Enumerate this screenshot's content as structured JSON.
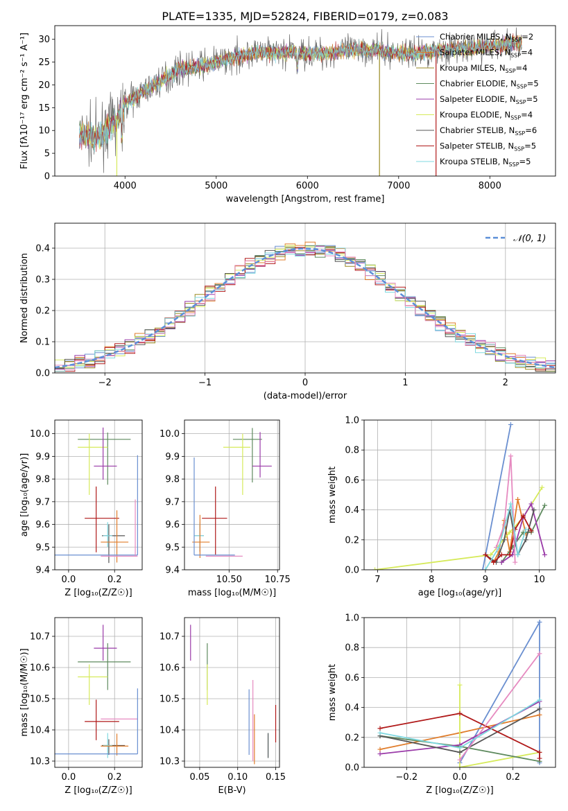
{
  "figure_title": "PLATE=1335, MJD=52824, FIBERID=0179, z=0.083",
  "colors": {
    "Chabrier MILES": "#6a8fd0",
    "Salpeter MILES": "#e07c2a",
    "Kroupa MILES": "#9a8a20",
    "Chabrier ELODIE": "#5e8a5e",
    "Salpeter ELODIE": "#9a3aa8",
    "Kroupa ELODIE": "#d6ea5a",
    "Chabrier STELIB": "#555555",
    "Salpeter STELIB": "#b01818",
    "Kroupa STELIB": "#7fd8e0",
    "pink": "#e68ac0",
    "normal": "#5b8fd8"
  },
  "chart_data": [
    {
      "id": "spectrum",
      "type": "line",
      "title": "PLATE=1335, MJD=52824, FIBERID=0179, z=0.083",
      "xlabel": "wavelength [Angstrom, rest frame]",
      "ylabel": "Flux [fλ10⁻¹⁷ erg cm⁻² s⁻¹ A⁻¹]",
      "xlim": [
        3230,
        8720
      ],
      "ylim": [
        0,
        33
      ],
      "xticks": [
        4000,
        5000,
        6000,
        7000,
        8000
      ],
      "yticks": [
        0,
        5,
        10,
        15,
        20,
        25,
        30
      ],
      "grid": false,
      "legend_position": "top-right",
      "continuum": {
        "x": [
          3500,
          3700,
          3900,
          4000,
          4200,
          4400,
          4600,
          4800,
          5000,
          5200,
          5400,
          5600,
          5800,
          6000,
          6200,
          6400,
          6600,
          6800,
          7000,
          7200,
          7400,
          7600,
          7800,
          8000,
          8200,
          8350
        ],
        "y": [
          9,
          8.5,
          12,
          16,
          18.5,
          21,
          23.5,
          24,
          25,
          26,
          27,
          27,
          27.2,
          27,
          27,
          27.5,
          27.8,
          27.5,
          27,
          27,
          27.5,
          28,
          28,
          28.5,
          29,
          29.5
        ]
      },
      "series": [
        {
          "name": "Chabrier MILES",
          "label_text": "Chabrier MILES, N",
          "sub": "SSP",
          "suffix": "=2"
        },
        {
          "name": "Salpeter MILES",
          "label_text": "Salpeter MILES, N",
          "sub": "SSP",
          "suffix": "=4"
        },
        {
          "name": "Kroupa MILES",
          "label_text": "Kroupa MILES, N",
          "sub": "SSP",
          "suffix": "=4"
        },
        {
          "name": "Chabrier ELODIE",
          "label_text": "Chabrier ELODIE, N",
          "sub": "SSP",
          "suffix": "=5"
        },
        {
          "name": "Salpeter ELODIE",
          "label_text": "Salpeter ELODIE, N",
          "sub": "SSP",
          "suffix": "=5"
        },
        {
          "name": "Kroupa ELODIE",
          "label_text": "Kroupa ELODIE, N",
          "sub": "SSP",
          "suffix": "=4"
        },
        {
          "name": "Chabrier STELIB",
          "label_text": "Chabrier STELIB, N",
          "sub": "SSP",
          "suffix": "=6"
        },
        {
          "name": "Salpeter STELIB",
          "label_text": "Salpeter STELIB, N",
          "sub": "SSP",
          "suffix": "=5"
        },
        {
          "name": "Kroupa STELIB",
          "label_text": "Kroupa STELIB, N",
          "sub": "SSP",
          "suffix": "=5"
        }
      ],
      "vertical_spikes": [
        {
          "series": "Kroupa ELODIE",
          "x": 3910
        },
        {
          "series": "Kroupa MILES",
          "x": 6790
        },
        {
          "series": "Salpeter STELIB",
          "x": 7410
        }
      ]
    },
    {
      "id": "residuals",
      "type": "bar",
      "xlabel": "(data-model)/error",
      "ylabel": "Normed distribution",
      "xlim": [
        -2.5,
        2.5
      ],
      "ylim": [
        0,
        0.48
      ],
      "xticks": [
        -2,
        -1,
        0,
        1,
        2
      ],
      "yticks": [
        0.0,
        0.1,
        0.2,
        0.3,
        0.4
      ],
      "grid": true,
      "legend_position": "top-right",
      "legend_label": "𝒩(0, 1)",
      "bin_width": 0.1
    },
    {
      "id": "age-vs-Z",
      "type": "scatter",
      "xlabel": "Z [log₁₀(Z/Z☉)]",
      "ylabel": "age  [log₁₀(age/yr)]",
      "xlim": [
        -0.06,
        0.32
      ],
      "ylim": [
        9.4,
        10.06
      ],
      "xticks": [
        0.0,
        0.2
      ],
      "yticks": [
        9.4,
        9.5,
        9.6,
        9.7,
        9.8,
        9.9,
        10.0
      ],
      "grid": true,
      "points": [
        {
          "series": "Chabrier ELODIE",
          "x": 0.17,
          "y": 9.975,
          "xerr": [
            0.13,
            0.1
          ],
          "yerr": [
            0.2,
            0.03
          ]
        },
        {
          "series": "Kroupa ELODIE",
          "x": 0.09,
          "y": 9.94,
          "xerr": [
            0.05,
            0.08
          ],
          "yerr": [
            0.21,
            0.06
          ]
        },
        {
          "series": "Salpeter ELODIE",
          "x": 0.15,
          "y": 9.857,
          "xerr": [
            0.04,
            0.06
          ],
          "yerr": [
            0.06,
            0.17
          ]
        },
        {
          "series": "Salpeter STELIB",
          "x": 0.12,
          "y": 9.627,
          "xerr": [
            0.05,
            0.1
          ],
          "yerr": [
            0.15,
            0.14
          ]
        },
        {
          "series": "Chabrier STELIB",
          "x": 0.175,
          "y": 9.55,
          "xerr": [
            0.03,
            0.07
          ],
          "yerr": [
            0.12,
            0.05
          ]
        },
        {
          "series": "Kroupa STELIB",
          "x": 0.17,
          "y": 9.55,
          "xerr": [
            0.02,
            0.02
          ],
          "yerr": [
            0.05,
            0.06
          ]
        },
        {
          "series": "Salpeter MILES",
          "x": 0.21,
          "y": 9.522,
          "xerr": [
            0.07,
            0.05
          ],
          "yerr": [
            0.09,
            0.14
          ]
        },
        {
          "series": "Chabrier MILES",
          "x": 0.3,
          "y": 9.465,
          "xerr": [
            0.36,
            0.0
          ],
          "yerr": [
            0.0,
            0.44
          ]
        },
        {
          "series": "pink",
          "x": 0.29,
          "y": 9.46,
          "xerr": [
            0.15,
            0.01
          ],
          "yerr": [
            0.0,
            0.25
          ]
        }
      ]
    },
    {
      "id": "age-vs-mass",
      "type": "scatter",
      "xlabel": "mass [log₁₀(M/M☉)]",
      "ylabel": "",
      "xlim": [
        10.27,
        10.76
      ],
      "ylim": [
        9.4,
        10.06
      ],
      "xticks": [
        10.5,
        10.75
      ],
      "yticks": [
        9.4,
        9.5,
        9.6,
        9.7,
        9.8,
        9.9,
        10.0
      ],
      "grid": true,
      "points": [
        {
          "series": "Chabrier ELODIE",
          "x": 10.62,
          "y": 9.975,
          "xerr": [
            0.1,
            0.05
          ],
          "yerr": [
            0.19,
            0.05
          ]
        },
        {
          "series": "Kroupa ELODIE",
          "x": 10.57,
          "y": 9.94,
          "xerr": [
            0.1,
            0.04
          ],
          "yerr": [
            0.21,
            0.06
          ]
        },
        {
          "series": "Salpeter ELODIE",
          "x": 10.66,
          "y": 9.857,
          "xerr": [
            0.04,
            0.06
          ],
          "yerr": [
            0.05,
            0.15
          ]
        },
        {
          "series": "Salpeter STELIB",
          "x": 10.43,
          "y": 9.627,
          "xerr": [
            0.07,
            0.06
          ],
          "yerr": [
            0.16,
            0.14
          ]
        },
        {
          "series": "Chabrier STELIB",
          "x": 10.35,
          "y": 9.55,
          "xerr": [
            0.03,
            0.02
          ],
          "yerr": [
            0.07,
            0.05
          ]
        },
        {
          "series": "Kroupa STELIB",
          "x": 10.35,
          "y": 9.55,
          "xerr": [
            0.03,
            0.02
          ],
          "yerr": [
            0.05,
            0.06
          ]
        },
        {
          "series": "Salpeter MILES",
          "x": 10.35,
          "y": 9.522,
          "xerr": [
            0.04,
            0.05
          ],
          "yerr": [
            0.07,
            0.12
          ]
        },
        {
          "series": "Chabrier MILES",
          "x": 10.32,
          "y": 9.465,
          "xerr": [
            0.0,
            0.21
          ],
          "yerr": [
            0.0,
            0.43
          ]
        },
        {
          "series": "pink",
          "x": 10.44,
          "y": 9.46,
          "xerr": [
            0.06,
            0.13
          ],
          "yerr": [
            0.0,
            0.0
          ]
        }
      ]
    },
    {
      "id": "weight-vs-age",
      "type": "line",
      "xlabel": "age  [log₁₀(age/yr)]",
      "ylabel": "mass weight",
      "xlim": [
        6.75,
        10.3
      ],
      "ylim": [
        0,
        1.0
      ],
      "xticks": [
        7,
        8,
        9,
        10
      ],
      "yticks": [
        0.0,
        0.2,
        0.4,
        0.6,
        0.8,
        1.0
      ],
      "grid": true,
      "series": [
        {
          "name": "Chabrier MILES",
          "x": [
            8.95,
            9.47
          ],
          "y": [
            0.0,
            0.97
          ]
        },
        {
          "name": "Salpeter MILES",
          "x": [
            9.15,
            9.25,
            9.35,
            9.45,
            9.6,
            9.75
          ],
          "y": [
            0.05,
            0.12,
            0.33,
            0.12,
            0.47,
            0.24
          ]
        },
        {
          "name": "Kroupa ELODIE",
          "x": [
            6.95,
            9.1,
            9.45,
            9.7,
            10.05
          ],
          "y": [
            0.0,
            0.1,
            0.25,
            0.35,
            0.55
          ]
        },
        {
          "name": "Chabrier ELODIE",
          "x": [
            9.3,
            9.5,
            9.7,
            9.85,
            10.1
          ],
          "y": [
            0.05,
            0.15,
            0.25,
            0.25,
            0.43
          ]
        },
        {
          "name": "Salpeter ELODIE",
          "x": [
            9.3,
            9.5,
            9.7,
            9.85,
            10.1
          ],
          "y": [
            0.05,
            0.1,
            0.35,
            0.44,
            0.1
          ]
        },
        {
          "name": "Chabrier STELIB",
          "x": [
            9.0,
            9.2,
            9.35,
            9.45,
            9.6,
            9.75,
            9.9
          ],
          "y": [
            0.1,
            0.05,
            0.2,
            0.4,
            0.1,
            0.2,
            0.4
          ]
        },
        {
          "name": "Salpeter STELIB",
          "x": [
            9.0,
            9.15,
            9.3,
            9.45,
            9.55,
            9.7,
            9.85
          ],
          "y": [
            0.1,
            0.05,
            0.1,
            0.1,
            0.27,
            0.36,
            0.26
          ]
        },
        {
          "name": "pink",
          "x": [
            9.2,
            9.35,
            9.47,
            9.55
          ],
          "y": [
            0.15,
            0.3,
            0.76,
            0.05
          ]
        },
        {
          "name": "Kroupa STELIB",
          "x": [
            9.0,
            9.25,
            9.47,
            9.6,
            9.75
          ],
          "y": [
            0.0,
            0.15,
            0.44,
            0.1,
            0.27
          ]
        }
      ]
    },
    {
      "id": "mass-vs-Z",
      "type": "scatter",
      "xlabel": "Z [log₁₀(Z/Z☉)]",
      "ylabel": "mass [log₁₀(M/M☉)]",
      "xlim": [
        -0.06,
        0.32
      ],
      "ylim": [
        10.28,
        10.76
      ],
      "xticks": [
        0.0,
        0.2
      ],
      "yticks": [
        10.3,
        10.4,
        10.5,
        10.6,
        10.7
      ],
      "grid": true,
      "points": [
        {
          "series": "Salpeter ELODIE",
          "x": 0.15,
          "y": 10.662,
          "xerr": [
            0.04,
            0.06
          ],
          "yerr": [
            0.04,
            0.075
          ]
        },
        {
          "series": "Chabrier ELODIE",
          "x": 0.17,
          "y": 10.618,
          "xerr": [
            0.13,
            0.1
          ],
          "yerr": [
            0.09,
            0.06
          ]
        },
        {
          "series": "Kroupa ELODIE",
          "x": 0.09,
          "y": 10.57,
          "xerr": [
            0.05,
            0.08
          ],
          "yerr": [
            0.09,
            0.04
          ]
        },
        {
          "series": "pink",
          "x": 0.29,
          "y": 10.435,
          "xerr": [
            0.15,
            0.01
          ],
          "yerr": [
            0.0,
            0.0
          ]
        },
        {
          "series": "Salpeter STELIB",
          "x": 0.12,
          "y": 10.427,
          "xerr": [
            0.05,
            0.1
          ],
          "yerr": [
            0.06,
            0.07
          ]
        },
        {
          "series": "Chabrier STELIB",
          "x": 0.175,
          "y": 10.35,
          "xerr": [
            0.03,
            0.07
          ],
          "yerr": [
            0.03,
            0.02
          ]
        },
        {
          "series": "Kroupa STELIB",
          "x": 0.17,
          "y": 10.35,
          "xerr": [
            0.02,
            0.02
          ],
          "yerr": [
            0.04,
            0.04
          ]
        },
        {
          "series": "Salpeter MILES",
          "x": 0.21,
          "y": 10.348,
          "xerr": [
            0.07,
            0.05
          ],
          "yerr": [
            0.03,
            0.04
          ]
        },
        {
          "series": "Chabrier MILES",
          "x": 0.3,
          "y": 10.323,
          "xerr": [
            0.36,
            0.0
          ],
          "yerr": [
            0.0,
            0.21
          ]
        }
      ]
    },
    {
      "id": "mass-vs-ebv",
      "type": "scatter",
      "xlabel": "E(B-V)",
      "ylabel": "",
      "xlim": [
        0.03,
        0.155
      ],
      "ylim": [
        10.28,
        10.76
      ],
      "xticks": [
        0.05,
        0.1,
        0.15
      ],
      "yticks": [
        10.3,
        10.4,
        10.5,
        10.6,
        10.7
      ],
      "grid": true,
      "points": [
        {
          "series": "Salpeter ELODIE",
          "x": 0.038,
          "y": 10.662,
          "xerr": [
            0,
            0
          ],
          "yerr": [
            0.04,
            0.075
          ]
        },
        {
          "series": "Chabrier ELODIE",
          "x": 0.06,
          "y": 10.618,
          "xerr": [
            0,
            0
          ],
          "yerr": [
            0.09,
            0.06
          ]
        },
        {
          "series": "Kroupa ELODIE",
          "x": 0.06,
          "y": 10.57,
          "xerr": [
            0,
            0
          ],
          "yerr": [
            0.09,
            0.04
          ]
        },
        {
          "series": "Chabrier MILES",
          "x": 0.115,
          "y": 10.42,
          "xerr": [
            0,
            0
          ],
          "yerr": [
            0.1,
            0.11
          ]
        },
        {
          "series": "pink",
          "x": 0.12,
          "y": 10.43,
          "xerr": [
            0,
            0
          ],
          "yerr": [
            0.13,
            0.13
          ]
        },
        {
          "series": "Salpeter MILES",
          "x": 0.122,
          "y": 10.37,
          "xerr": [
            0,
            0
          ],
          "yerr": [
            0.08,
            0.08
          ]
        },
        {
          "series": "Kroupa STELIB",
          "x": 0.14,
          "y": 10.35,
          "xerr": [
            0,
            0
          ],
          "yerr": [
            0.04,
            0.04
          ]
        },
        {
          "series": "Chabrier STELIB",
          "x": 0.14,
          "y": 10.35,
          "xerr": [
            0,
            0
          ],
          "yerr": [
            0.04,
            0.04
          ]
        },
        {
          "series": "Salpeter STELIB",
          "x": 0.15,
          "y": 10.42,
          "xerr": [
            0,
            0
          ],
          "yerr": [
            0.06,
            0.06
          ]
        }
      ]
    },
    {
      "id": "weight-vs-Z",
      "type": "line",
      "xlabel": "Z [log₁₀(Z/Z☉)]",
      "ylabel": "mass weight",
      "xlim": [
        -0.36,
        0.36
      ],
      "ylim": [
        0,
        1.0
      ],
      "xticks": [
        -0.2,
        0.0,
        0.2
      ],
      "yticks": [
        0.0,
        0.2,
        0.4,
        0.6,
        0.8,
        1.0
      ],
      "grid": true,
      "series": [
        {
          "name": "Chabrier MILES",
          "x": [
            0.0,
            0.3,
            0.3
          ],
          "y": [
            0.03,
            0.97,
            0.03
          ]
        },
        {
          "name": "Salpeter MILES",
          "x": [
            -0.3,
            0.0,
            0.3
          ],
          "y": [
            0.12,
            0.23,
            0.35
          ]
        },
        {
          "name": "Kroupa ELODIE",
          "x": [
            0.0,
            0.0,
            0.3
          ],
          "y": [
            0.55,
            0.0,
            0.1
          ]
        },
        {
          "name": "Chabrier ELODIE",
          "x": [
            -0.3,
            0.0,
            0.3
          ],
          "y": [
            0.21,
            0.14,
            0.04
          ]
        },
        {
          "name": "Salpeter ELODIE",
          "x": [
            -0.3,
            0.0,
            0.3
          ],
          "y": [
            0.09,
            0.15,
            0.44
          ]
        },
        {
          "name": "Chabrier STELIB",
          "x": [
            -0.3,
            0.0,
            0.3
          ],
          "y": [
            0.21,
            0.1,
            0.39
          ]
        },
        {
          "name": "Salpeter STELIB",
          "x": [
            -0.3,
            0.0,
            0.3,
            0.3
          ],
          "y": [
            0.26,
            0.36,
            0.1,
            0.06
          ]
        },
        {
          "name": "pink",
          "x": [
            0.0,
            0.3
          ],
          "y": [
            0.05,
            0.76
          ]
        },
        {
          "name": "Kroupa STELIB",
          "x": [
            -0.3,
            0.0,
            0.3
          ],
          "y": [
            0.23,
            0.13,
            0.45
          ]
        }
      ]
    }
  ]
}
